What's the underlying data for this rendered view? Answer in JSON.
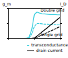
{
  "chart_data": {
    "type": "line",
    "y_label": "g_m",
    "y2_label": "I_D",
    "x": [
      0,
      0.5,
      1,
      1.5,
      2,
      2.5,
      3,
      3.5,
      4,
      4.5,
      5,
      5.5,
      6,
      6.5,
      7,
      7.5,
      8,
      8.5,
      9,
      9.5,
      10
    ],
    "xlim": [
      0,
      10
    ],
    "xticks": [
      0,
      5,
      10
    ],
    "ylim": [
      0,
      1
    ],
    "yticks": [
      0,
      0.5,
      1
    ],
    "y2lim": [
      0,
      1
    ],
    "y2ticks": [
      0,
      0.5,
      1
    ],
    "tick_labels": false,
    "series": [
      {
        "name": "transconductance",
        "color": "#33ccdd",
        "line_style": "solid",
        "values": [
          0,
          0,
          0,
          0,
          0,
          0,
          0,
          0.01,
          0.05,
          0.3,
          0.8,
          0.88,
          0.85,
          0.83,
          0.82,
          0.81,
          0.8,
          0.8,
          0.8,
          0.79,
          0.79
        ]
      },
      {
        "name": "transconductance",
        "color": "#33ccdd",
        "line_style": "dashed",
        "values": [
          0,
          0,
          0,
          0,
          0,
          0,
          0,
          0,
          0.02,
          0.15,
          0.4,
          0.5,
          0.5,
          0.49,
          0.48,
          0.48,
          0.47,
          0.47,
          0.47,
          0.46,
          0.46
        ]
      },
      {
        "name": "drain current",
        "color": "#000000",
        "line_style": "solid",
        "axis": "y2",
        "values": [
          0,
          0,
          0,
          0,
          0,
          0,
          0,
          0,
          0,
          0,
          0.02,
          0.08,
          0.15,
          0.22,
          0.29,
          0.36,
          0.43,
          0.5,
          0.57,
          0.64,
          0.71
        ]
      },
      {
        "name": "drain current",
        "color": "#000000",
        "line_style": "dashed",
        "axis": "y2",
        "values": [
          0,
          0,
          0,
          0,
          0,
          0,
          0,
          0,
          0,
          0,
          0.01,
          0.04,
          0.08,
          0.12,
          0.16,
          0.2,
          0.24,
          0.28,
          0.32,
          0.36,
          0.4
        ]
      }
    ],
    "annotations": [
      {
        "text": "Double grid",
        "x": 6.2,
        "y": 0.95
      },
      {
        "text": "Single grid",
        "x": 6.2,
        "y": 0.13
      }
    ]
  }
}
